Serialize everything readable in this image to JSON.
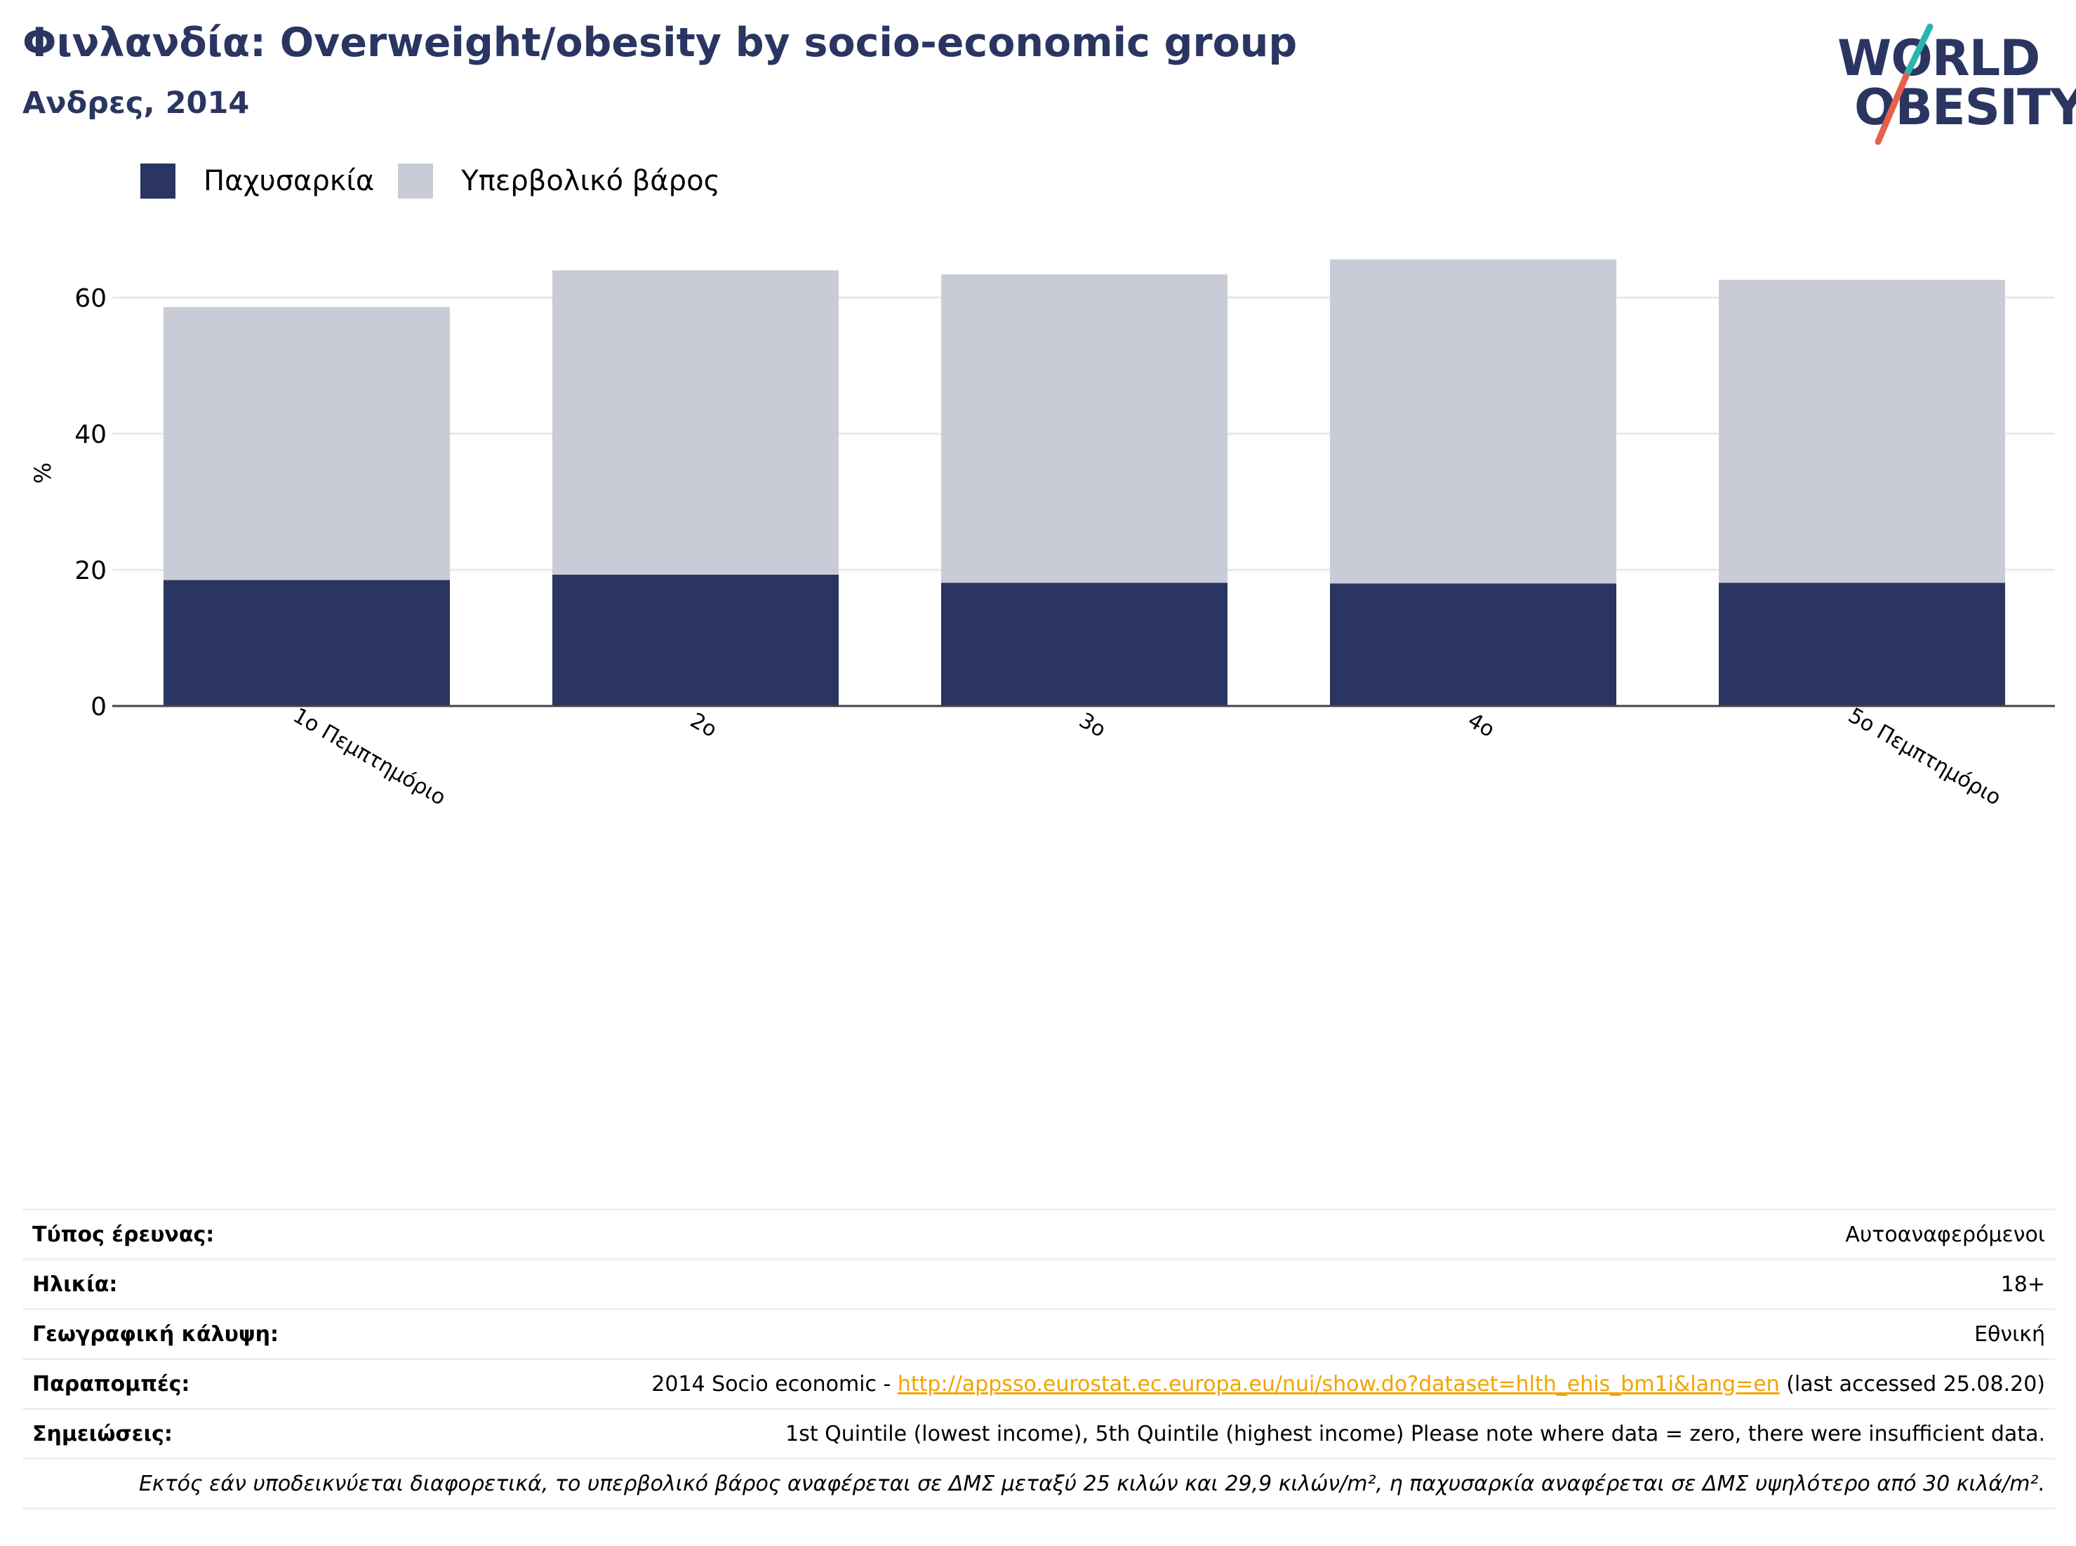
{
  "header": {
    "title": "Φινλανδία: Overweight/obesity by socio-economic group",
    "subtitle": "Ανδρες, 2014"
  },
  "logo": {
    "line1": "WORLD",
    "line2": "OBESITY",
    "colors": {
      "text": "#2a3561",
      "slash_top": "#2bb5b0",
      "slash_bottom": "#e8604c"
    }
  },
  "legend": {
    "items": [
      {
        "label": "Παχυσαρκία",
        "color": "#2a3561"
      },
      {
        "label": "Υπερβολικό βάρος",
        "color": "#c9cbd7"
      }
    ]
  },
  "chart_data": {
    "type": "bar",
    "stacked": true,
    "categories": [
      "1ο Πεμπτημόριο",
      "2ο",
      "3ο",
      "4ο",
      "5ο Πεμπτημόριο"
    ],
    "series": [
      {
        "name": "Παχυσαρκία",
        "values": [
          18.5,
          19.3,
          18.1,
          18.0,
          18.1
        ],
        "color": "#2a3561"
      },
      {
        "name": "Υπερβολικό βάρος",
        "values": [
          40.1,
          44.7,
          45.3,
          47.6,
          44.5
        ],
        "color": "#c9cbd7"
      }
    ],
    "ylabel": "%",
    "ylim": [
      0,
      70
    ],
    "yticks": [
      0,
      20,
      40,
      60
    ],
    "grid": true,
    "legend_position": "top-left"
  },
  "info": {
    "survey_type": {
      "label": "Τύπος έρευνας:",
      "value": "Αυτοαναφερόμενοι"
    },
    "age": {
      "label": "Ηλικία:",
      "value": "18+"
    },
    "coverage": {
      "label": "Γεωγραφική κάλυψη:",
      "value": "Εθνική"
    },
    "references": {
      "label": "Παραπομπές:",
      "prefix": "2014 Socio economic - ",
      "link": "http://appsso.eurostat.ec.europa.eu/nui/show.do?dataset=hlth_ehis_bm1i&lang=en",
      "suffix": " (last accessed 25.08.20)"
    },
    "notes": {
      "label": "Σημειώσεις:",
      "value": "1st Quintile (lowest income), 5th Quintile (highest income) Please note where data = zero, there were insufficient data."
    },
    "footnote": "Εκτός εάν υποδεικνύεται διαφορετικά, το υπερβολικό βάρος αναφέρεται σε ΔΜΣ μεταξύ 25 κιλών και 29,9 κιλών/m², η παχυσαρκία αναφέρεται σε ΔΜΣ υψηλότερο από 30 κιλά/m²."
  }
}
